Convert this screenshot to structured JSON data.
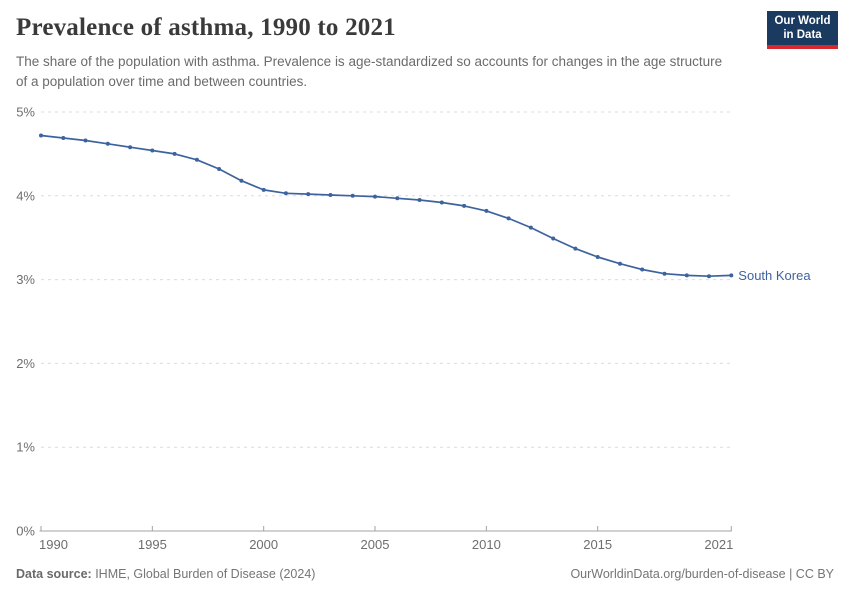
{
  "header": {
    "title": "Prevalence of asthma, 1990 to 2021",
    "subtitle": "The share of the population with asthma. Prevalence is age-standardized so accounts for changes in the age structure of a population over time and between countries."
  },
  "logo": {
    "line1": "Our World",
    "line2": "in Data",
    "bg_color": "#1b3a5f",
    "bar_color": "#d7282f"
  },
  "chart_data": {
    "type": "line",
    "title": "Prevalence of asthma, 1990 to 2021",
    "xlabel": "",
    "ylabel": "",
    "xlim": [
      1990,
      2021
    ],
    "ylim": [
      0,
      5
    ],
    "x_ticks": [
      1990,
      1995,
      2000,
      2005,
      2010,
      2015,
      2021
    ],
    "y_ticks": [
      0,
      1,
      2,
      3,
      4,
      5
    ],
    "y_tick_suffix": "%",
    "grid": "horizontal-dashed",
    "legend_position": "end-of-line",
    "series": [
      {
        "name": "South Korea",
        "color": "#3d639e",
        "x": [
          1990,
          1991,
          1992,
          1993,
          1994,
          1995,
          1996,
          1997,
          1998,
          1999,
          2000,
          2001,
          2002,
          2003,
          2004,
          2005,
          2006,
          2007,
          2008,
          2009,
          2010,
          2011,
          2012,
          2013,
          2014,
          2015,
          2016,
          2017,
          2018,
          2019,
          2020,
          2021
        ],
        "values": [
          4.72,
          4.69,
          4.66,
          4.62,
          4.58,
          4.54,
          4.5,
          4.43,
          4.32,
          4.18,
          4.07,
          4.03,
          4.02,
          4.01,
          4.0,
          3.99,
          3.97,
          3.95,
          3.92,
          3.88,
          3.82,
          3.73,
          3.62,
          3.49,
          3.37,
          3.27,
          3.19,
          3.12,
          3.07,
          3.05,
          3.04,
          3.05
        ]
      }
    ]
  },
  "footer": {
    "source_label": "Data source:",
    "source_text": " IHME, Global Burden of Disease (2024)",
    "credit": "OurWorldinData.org/burden-of-disease | CC BY"
  },
  "colors": {
    "accent": "#3d639e",
    "grid": "#dcdcdc",
    "axis": "#a3a3a3",
    "muted_text": "#6e6e6e"
  }
}
